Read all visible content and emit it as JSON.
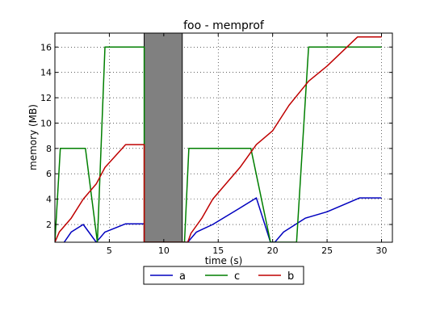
{
  "chart_data": {
    "type": "line",
    "title": "foo - memprof",
    "xlabel": "time (s)",
    "ylabel": "memory (MB)",
    "xlim": [
      0,
      31
    ],
    "ylim": [
      0.6,
      17.1
    ],
    "xticks": [
      5,
      10,
      15,
      20,
      25,
      30
    ],
    "xtick_labels": [
      "5",
      "10",
      "15",
      "20",
      "25",
      "30"
    ],
    "yticks": [
      2,
      4,
      6,
      8,
      10,
      12,
      14,
      16
    ],
    "ytick_labels": [
      "2",
      "4",
      "6",
      "8",
      "10",
      "12",
      "14",
      "16"
    ],
    "grid": true,
    "legend_position": "bottom-center",
    "shaded_region": {
      "x_start": 8.2,
      "x_end": 11.7,
      "color": "#808080"
    },
    "series": [
      {
        "name": "a",
        "color": "#0000bf",
        "points": [
          [
            0.85,
            0.6
          ],
          [
            1.5,
            1.4
          ],
          [
            2.6,
            2.0
          ],
          [
            3.8,
            0.6
          ],
          [
            4.6,
            1.4
          ],
          [
            6.5,
            2.05
          ],
          [
            8.2,
            2.05
          ],
          [
            8.2,
            0.6
          ],
          [
            12.2,
            0.6
          ],
          [
            13.0,
            1.4
          ],
          [
            14.5,
            2.0
          ],
          [
            17.0,
            3.3
          ],
          [
            18.5,
            4.1
          ],
          [
            19.8,
            0.6
          ],
          [
            20.2,
            0.6
          ],
          [
            21.0,
            1.4
          ],
          [
            23.0,
            2.5
          ],
          [
            25.0,
            3.0
          ],
          [
            28.0,
            4.1
          ],
          [
            30.0,
            4.1
          ]
        ]
      },
      {
        "name": "c",
        "color": "#007f00",
        "points": [
          [
            0.0,
            0.6
          ],
          [
            0.5,
            8.0
          ],
          [
            2.8,
            8.0
          ],
          [
            3.9,
            0.6
          ],
          [
            4.6,
            16.0
          ],
          [
            8.2,
            16.0
          ],
          [
            8.2,
            0.6
          ],
          [
            11.9,
            0.6
          ],
          [
            12.3,
            8.0
          ],
          [
            18.0,
            8.0
          ],
          [
            19.8,
            0.6
          ],
          [
            22.2,
            0.6
          ],
          [
            23.3,
            16.0
          ],
          [
            30.0,
            16.0
          ]
        ]
      },
      {
        "name": "b",
        "color": "#bf0000",
        "points": [
          [
            0.0,
            0.6
          ],
          [
            0.4,
            1.4
          ],
          [
            1.5,
            2.5
          ],
          [
            2.6,
            4.0
          ],
          [
            3.8,
            5.2
          ],
          [
            4.6,
            6.5
          ],
          [
            6.5,
            8.3
          ],
          [
            8.2,
            8.3
          ],
          [
            8.2,
            0.6
          ],
          [
            12.2,
            0.6
          ],
          [
            12.5,
            1.3
          ],
          [
            13.5,
            2.5
          ],
          [
            14.5,
            4.0
          ],
          [
            15.5,
            5.0
          ],
          [
            17.0,
            6.5
          ],
          [
            18.5,
            8.3
          ],
          [
            20.0,
            9.4
          ],
          [
            21.5,
            11.4
          ],
          [
            23.3,
            13.3
          ],
          [
            25.0,
            14.5
          ],
          [
            27.8,
            16.8
          ],
          [
            30.0,
            16.8
          ]
        ]
      }
    ],
    "legend_order": [
      "a",
      "c",
      "b"
    ]
  }
}
